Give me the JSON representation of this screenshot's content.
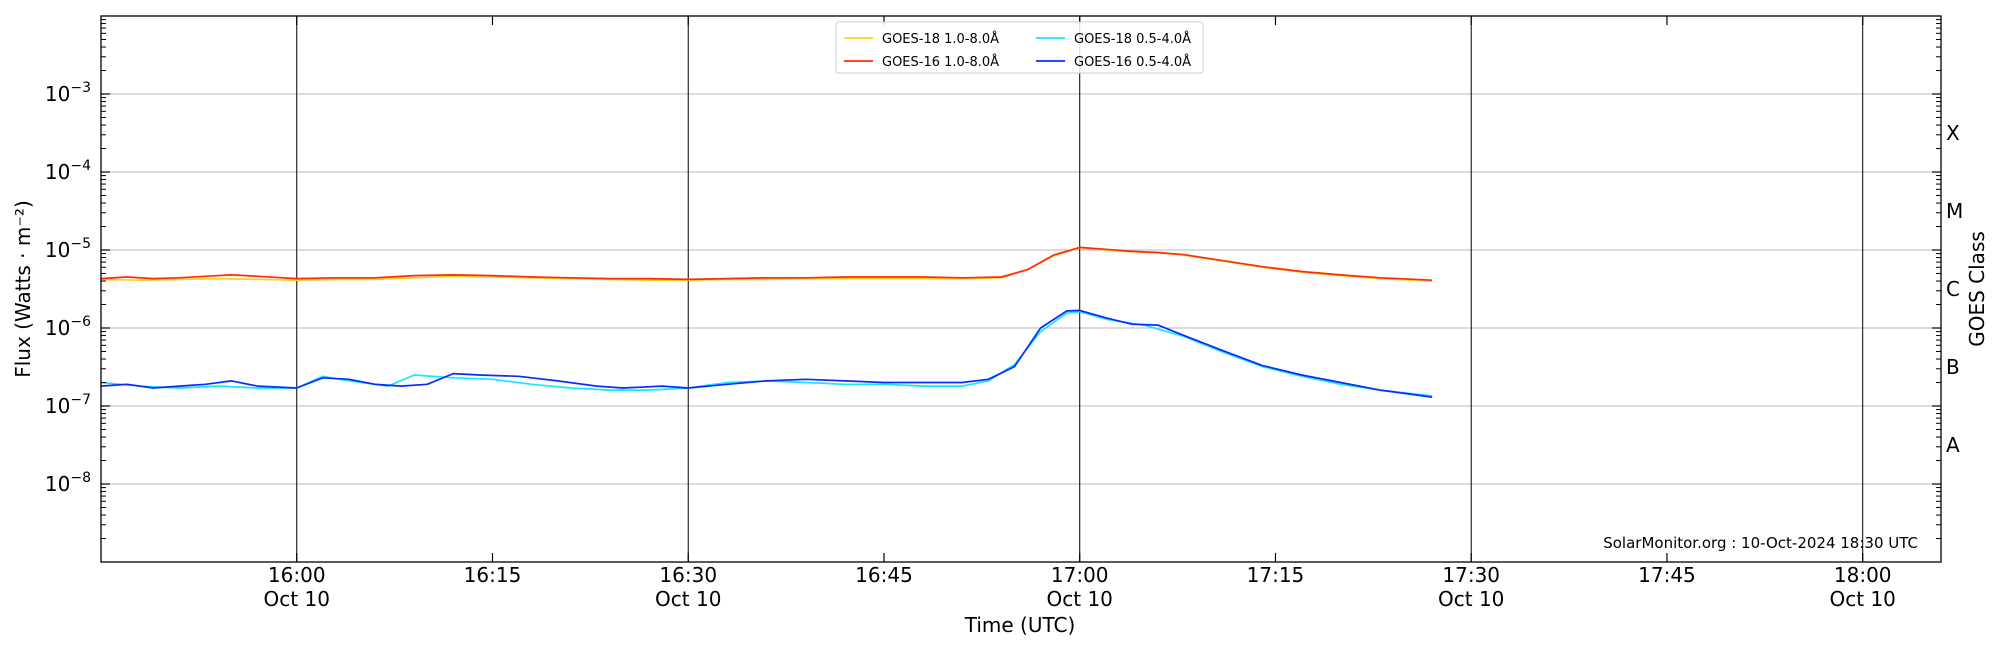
{
  "chart_data": {
    "type": "line",
    "xlabel": "Time (UTC)",
    "ylabel": "Flux (Watts · m⁻²)",
    "ylabel_right": "GOES Class",
    "y_scale": "log",
    "ylim": [
      1e-09,
      0.01
    ],
    "xlim": [
      "2024-10-10 15:45",
      "2024-10-10 18:06"
    ],
    "grid": "horizontal at decades, vertical at 30-minute marks",
    "legend_position": "top-center",
    "x_ticks": [
      {
        "t": "2024-10-10 16:00",
        "l1": "16:00",
        "l2": "Oct 10"
      },
      {
        "t": "2024-10-10 16:15",
        "l1": "16:15",
        "l2": ""
      },
      {
        "t": "2024-10-10 16:30",
        "l1": "16:30",
        "l2": "Oct 10"
      },
      {
        "t": "2024-10-10 16:45",
        "l1": "16:45",
        "l2": ""
      },
      {
        "t": "2024-10-10 17:00",
        "l1": "17:00",
        "l2": "Oct 10"
      },
      {
        "t": "2024-10-10 17:15",
        "l1": "17:15",
        "l2": ""
      },
      {
        "t": "2024-10-10 17:30",
        "l1": "17:30",
        "l2": "Oct 10"
      },
      {
        "t": "2024-10-10 17:45",
        "l1": "17:45",
        "l2": ""
      },
      {
        "t": "2024-10-10 18:00",
        "l1": "18:00",
        "l2": "Oct 10"
      }
    ],
    "y_ticks": [
      {
        "v": 1e-08,
        "b": "10",
        "e": "−8"
      },
      {
        "v": 1e-07,
        "b": "10",
        "e": "−7"
      },
      {
        "v": 1e-06,
        "b": "10",
        "e": "−6"
      },
      {
        "v": 1e-05,
        "b": "10",
        "e": "−5"
      },
      {
        "v": 0.0001,
        "b": "10",
        "e": "−4"
      },
      {
        "v": 0.001,
        "b": "10",
        "e": "−3"
      }
    ],
    "goes_classes": [
      {
        "label": "A",
        "v": 3.16e-08
      },
      {
        "label": "B",
        "v": 3.16e-07
      },
      {
        "label": "C",
        "v": 3.16e-06
      },
      {
        "label": "M",
        "v": 3.16e-05
      },
      {
        "label": "X",
        "v": 0.000316
      }
    ],
    "series": [
      {
        "name": "GOES-18 1.0-8.0Å",
        "color": "#ffd21f",
        "x": [
          "2024-10-10 15:45",
          "2024-10-10 15:48",
          "2024-10-10 15:51",
          "2024-10-10 15:54",
          "2024-10-10 15:57",
          "2024-10-10 16:00",
          "2024-10-10 16:03",
          "2024-10-10 16:06",
          "2024-10-10 16:09",
          "2024-10-10 16:12",
          "2024-10-10 16:15",
          "2024-10-10 16:18",
          "2024-10-10 16:21",
          "2024-10-10 16:24",
          "2024-10-10 16:27",
          "2024-10-10 16:30",
          "2024-10-10 16:33",
          "2024-10-10 16:36",
          "2024-10-10 16:39",
          "2024-10-10 16:42",
          "2024-10-10 16:45",
          "2024-10-10 16:48",
          "2024-10-10 16:51",
          "2024-10-10 16:54",
          "2024-10-10 16:56",
          "2024-10-10 16:58",
          "2024-10-10 17:00",
          "2024-10-10 17:02",
          "2024-10-10 17:04",
          "2024-10-10 17:06",
          "2024-10-10 17:08",
          "2024-10-10 17:11",
          "2024-10-10 17:14",
          "2024-10-10 17:17",
          "2024-10-10 17:20",
          "2024-10-10 17:23",
          "2024-10-10 17:27"
        ],
        "y": [
          4.2e-06,
          4.1e-06,
          4.2e-06,
          4.3e-06,
          4.2e-06,
          4.1e-06,
          4.2e-06,
          4.2e-06,
          4.4e-06,
          4.6e-06,
          4.5e-06,
          4.4e-06,
          4.3e-06,
          4.2e-06,
          4.1e-06,
          4.1e-06,
          4.2e-06,
          4.2e-06,
          4.3e-06,
          4.3e-06,
          4.3e-06,
          4.3e-06,
          4.3e-06,
          4.4e-06,
          5.6e-06,
          8.4e-06,
          1.07e-05,
          1e-05,
          9.5e-06,
          9.2e-06,
          8.6e-06,
          7.2e-06,
          6e-06,
          5.2e-06,
          4.7e-06,
          4.3e-06,
          4e-06
        ]
      },
      {
        "name": "GOES-16 1.0-8.0Å",
        "color": "#ff2b0a",
        "x": [
          "2024-10-10 15:45",
          "2024-10-10 15:47",
          "2024-10-10 15:49",
          "2024-10-10 15:51",
          "2024-10-10 15:53",
          "2024-10-10 15:55",
          "2024-10-10 15:57",
          "2024-10-10 16:00",
          "2024-10-10 16:03",
          "2024-10-10 16:06",
          "2024-10-10 16:09",
          "2024-10-10 16:12",
          "2024-10-10 16:15",
          "2024-10-10 16:18",
          "2024-10-10 16:21",
          "2024-10-10 16:24",
          "2024-10-10 16:27",
          "2024-10-10 16:30",
          "2024-10-10 16:33",
          "2024-10-10 16:36",
          "2024-10-10 16:39",
          "2024-10-10 16:42",
          "2024-10-10 16:45",
          "2024-10-10 16:48",
          "2024-10-10 16:51",
          "2024-10-10 16:54",
          "2024-10-10 16:56",
          "2024-10-10 16:58",
          "2024-10-10 17:00",
          "2024-10-10 17:02",
          "2024-10-10 17:04",
          "2024-10-10 17:06",
          "2024-10-10 17:08",
          "2024-10-10 17:11",
          "2024-10-10 17:14",
          "2024-10-10 17:17",
          "2024-10-10 17:20",
          "2024-10-10 17:23",
          "2024-10-10 17:27"
        ],
        "y": [
          4.3e-06,
          4.5e-06,
          4.3e-06,
          4.4e-06,
          4.6e-06,
          4.8e-06,
          4.6e-06,
          4.3e-06,
          4.4e-06,
          4.4e-06,
          4.7e-06,
          4.8e-06,
          4.7e-06,
          4.5e-06,
          4.4e-06,
          4.3e-06,
          4.3e-06,
          4.2e-06,
          4.3e-06,
          4.4e-06,
          4.4e-06,
          4.5e-06,
          4.5e-06,
          4.5e-06,
          4.4e-06,
          4.5e-06,
          5.6e-06,
          8.6e-06,
          1.08e-05,
          1.02e-05,
          9.6e-06,
          9.3e-06,
          8.7e-06,
          7.3e-06,
          6.1e-06,
          5.3e-06,
          4.8e-06,
          4.4e-06,
          4.1e-06
        ]
      },
      {
        "name": "GOES-18 0.5-4.0Å",
        "color": "#18e6ff",
        "x": [
          "2024-10-10 15:45",
          "2024-10-10 15:48",
          "2024-10-10 15:51",
          "2024-10-10 15:54",
          "2024-10-10 15:57",
          "2024-10-10 16:00",
          "2024-10-10 16:02",
          "2024-10-10 16:04",
          "2024-10-10 16:07",
          "2024-10-10 16:09",
          "2024-10-10 16:12",
          "2024-10-10 16:15",
          "2024-10-10 16:18",
          "2024-10-10 16:21",
          "2024-10-10 16:24",
          "2024-10-10 16:27",
          "2024-10-10 16:30",
          "2024-10-10 16:33",
          "2024-10-10 16:36",
          "2024-10-10 16:39",
          "2024-10-10 16:42",
          "2024-10-10 16:45",
          "2024-10-10 16:48",
          "2024-10-10 16:51",
          "2024-10-10 16:53",
          "2024-10-10 16:55",
          "2024-10-10 16:57",
          "2024-10-10 16:59",
          "2024-10-10 17:00",
          "2024-10-10 17:02",
          "2024-10-10 17:05",
          "2024-10-10 17:08",
          "2024-10-10 17:11",
          "2024-10-10 17:14",
          "2024-10-10 17:17",
          "2024-10-10 17:20",
          "2024-10-10 17:23",
          "2024-10-10 17:27"
        ],
        "y": [
          2e-07,
          1.8e-07,
          1.7e-07,
          1.8e-07,
          1.7e-07,
          1.7e-07,
          2.4e-07,
          2.1e-07,
          1.8e-07,
          2.5e-07,
          2.3e-07,
          2.2e-07,
          1.9e-07,
          1.7e-07,
          1.6e-07,
          1.6e-07,
          1.7e-07,
          2e-07,
          2.1e-07,
          2e-07,
          1.9e-07,
          1.9e-07,
          1.8e-07,
          1.8e-07,
          2.1e-07,
          3.4e-07,
          9e-07,
          1.55e-06,
          1.62e-06,
          1.3e-06,
          1.08e-06,
          7.8e-07,
          4.9e-07,
          3.2e-07,
          2.4e-07,
          1.9e-07,
          1.6e-07,
          1.35e-07
        ]
      },
      {
        "name": "GOES-16 0.5-4.0Å",
        "color": "#0a2bff",
        "x": [
          "2024-10-10 15:45",
          "2024-10-10 15:47",
          "2024-10-10 15:49",
          "2024-10-10 15:51",
          "2024-10-10 15:53",
          "2024-10-10 15:55",
          "2024-10-10 15:57",
          "2024-10-10 16:00",
          "2024-10-10 16:02",
          "2024-10-10 16:04",
          "2024-10-10 16:06",
          "2024-10-10 16:08",
          "2024-10-10 16:10",
          "2024-10-10 16:12",
          "2024-10-10 16:14",
          "2024-10-10 16:17",
          "2024-10-10 16:20",
          "2024-10-10 16:23",
          "2024-10-10 16:25",
          "2024-10-10 16:28",
          "2024-10-10 16:30",
          "2024-10-10 16:33",
          "2024-10-10 16:36",
          "2024-10-10 16:39",
          "2024-10-10 16:42",
          "2024-10-10 16:45",
          "2024-10-10 16:48",
          "2024-10-10 16:51",
          "2024-10-10 16:53",
          "2024-10-10 16:55",
          "2024-10-10 16:57",
          "2024-10-10 16:59",
          "2024-10-10 17:00",
          "2024-10-10 17:02",
          "2024-10-10 17:04",
          "2024-10-10 17:06",
          "2024-10-10 17:08",
          "2024-10-10 17:11",
          "2024-10-10 17:14",
          "2024-10-10 17:17",
          "2024-10-10 17:20",
          "2024-10-10 17:23",
          "2024-10-10 17:27"
        ],
        "y": [
          1.8e-07,
          1.9e-07,
          1.7e-07,
          1.8e-07,
          1.9e-07,
          2.1e-07,
          1.8e-07,
          1.7e-07,
          2.3e-07,
          2.2e-07,
          1.9e-07,
          1.8e-07,
          1.9e-07,
          2.6e-07,
          2.5e-07,
          2.4e-07,
          2.1e-07,
          1.8e-07,
          1.7e-07,
          1.8e-07,
          1.7e-07,
          1.9e-07,
          2.1e-07,
          2.2e-07,
          2.1e-07,
          2e-07,
          2e-07,
          2e-07,
          2.2e-07,
          3.2e-07,
          1e-06,
          1.65e-06,
          1.68e-06,
          1.35e-06,
          1.12e-06,
          1.09e-06,
          8e-07,
          5.1e-07,
          3.3e-07,
          2.5e-07,
          2e-07,
          1.6e-07,
          1.3e-07
        ]
      }
    ],
    "annotation": "SolarMonitor.org : 10-Oct-2024 18:30 UTC"
  }
}
